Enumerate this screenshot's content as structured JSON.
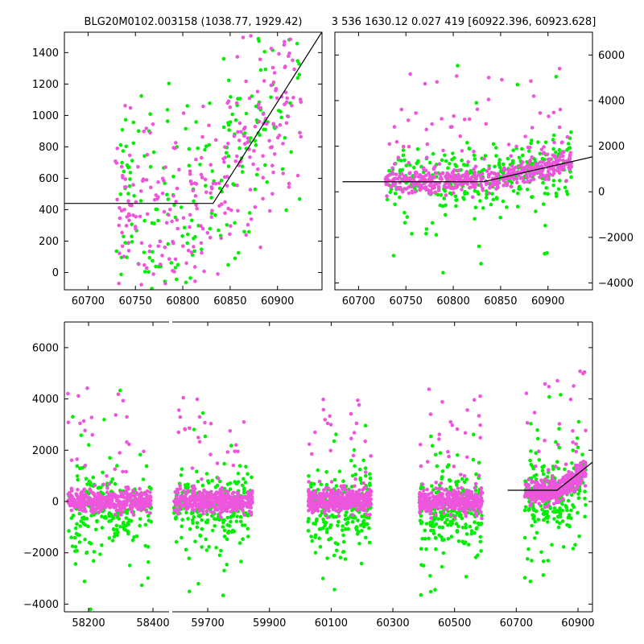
{
  "chart_data": [
    {
      "id": "zoom-left",
      "type": "scatter",
      "title": "BLG20M0102.003158 (1038.77, 1929.42)",
      "xlim": [
        60675,
        60947
      ],
      "ylim": [
        -110,
        1530
      ],
      "xticks": [
        60700,
        60750,
        60800,
        60850,
        60900
      ],
      "yticks": [
        0,
        200,
        400,
        600,
        800,
        1000,
        1200,
        1400
      ],
      "ytick_side": "left",
      "series": [
        {
          "name": "band-green",
          "color": "#00ee00",
          "x_range": [
            60730,
            60925
          ],
          "n": 230,
          "seed": 11,
          "profile": "wide"
        },
        {
          "name": "band-magenta",
          "color": "#ee55dd",
          "x_range": [
            60728,
            60925
          ],
          "n": 280,
          "seed": 23,
          "profile": "wide"
        }
      ],
      "model": {
        "t0": 60832,
        "base": 440,
        "slope": 9.5,
        "x_start": 60675,
        "x_end": 60947
      }
    },
    {
      "id": "zoom-right",
      "type": "scatter",
      "title": "3 536 1630.12 0.027 419 [60922.396, 60923.628]",
      "xlim": [
        60675,
        60947
      ],
      "ylim": [
        -4300,
        7000
      ],
      "xticks": [
        60700,
        60750,
        60800,
        60850,
        60900
      ],
      "yticks": [
        -4000,
        -2000,
        0,
        2000,
        4000,
        6000
      ],
      "ytick_side": "right",
      "series": [
        {
          "name": "band-green",
          "color": "#00ee00",
          "x_range": [
            60730,
            60925
          ],
          "n": 320,
          "seed": 37,
          "profile": "narrow"
        },
        {
          "name": "band-magenta",
          "color": "#ee55dd",
          "x_range": [
            60728,
            60925
          ],
          "n": 520,
          "seed": 41,
          "profile": "narrow"
        }
      ],
      "model": {
        "t0": 60832,
        "base": 440,
        "slope": 9.5,
        "x_start": 60683,
        "x_end": 60947
      }
    },
    {
      "id": "full-season",
      "type": "scatter",
      "title": "",
      "ylim": [
        -4300,
        7000
      ],
      "yticks": [
        -4000,
        -2000,
        0,
        2000,
        4000,
        6000
      ],
      "ytick_side": "left",
      "segments": [
        {
          "xlim": [
            58125,
            58450
          ],
          "xticks": [
            58200,
            58400
          ],
          "span": [
            58135,
            58395
          ]
        },
        {
          "xlim": [
            59585,
            60947
          ],
          "xticks": [
            59700,
            59900,
            60100,
            60300,
            60500,
            60700,
            60900
          ],
          "seasons": [
            [
              59590,
              59845
            ],
            [
              60025,
              60230
            ],
            [
              60385,
              60590
            ],
            [
              60728,
              60925
            ]
          ]
        }
      ],
      "model": {
        "t0": 60832,
        "base": 440,
        "slope": 9.5,
        "x_start": 60672,
        "x_end": 60947
      }
    }
  ]
}
